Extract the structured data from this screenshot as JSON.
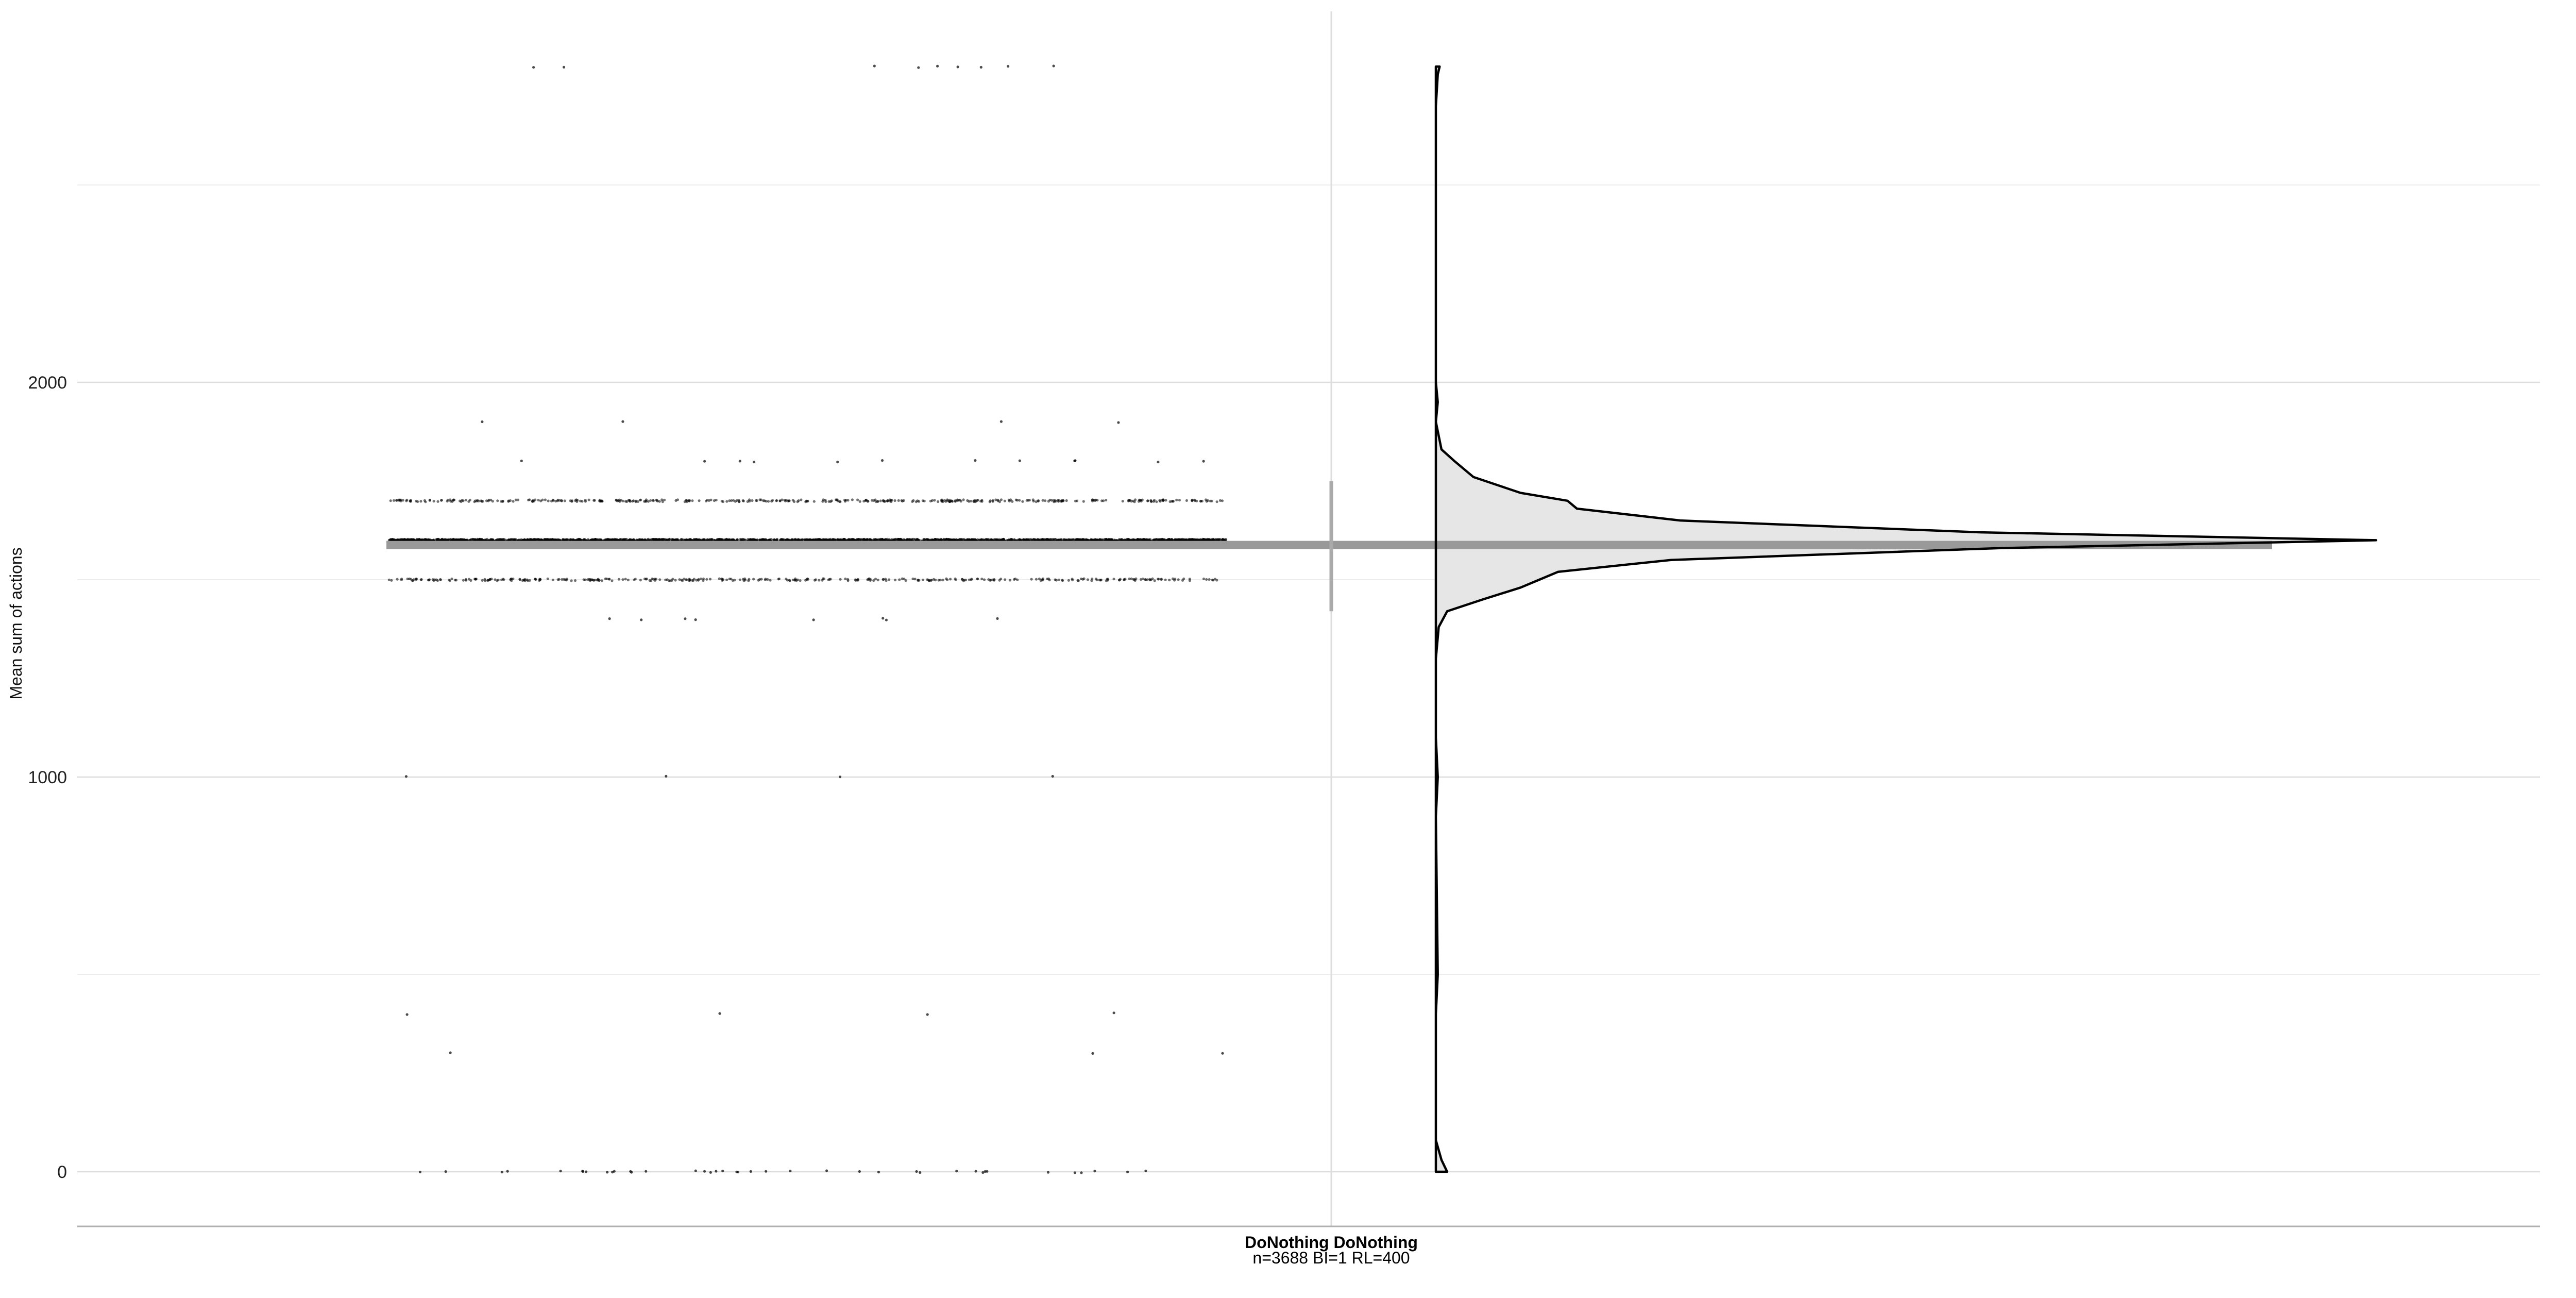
{
  "chart_data": {
    "type": "raincloud",
    "ylabel": "Mean sum of actions",
    "ylim": [
      -140,
      2950
    ],
    "yticks": [
      0,
      1000,
      2000
    ],
    "grid": true,
    "category": {
      "name": "DoNothing DoNothing",
      "subtitle": "n=3688 BI=1 RL=400"
    },
    "point_levels": [
      {
        "y": 2800,
        "count": 9
      },
      {
        "y": 1900,
        "count": 4
      },
      {
        "y": 1800,
        "count": 12
      },
      {
        "y": 1700,
        "count": 420
      },
      {
        "y": 1600,
        "count": 2600
      },
      {
        "y": 1500,
        "count": 360
      },
      {
        "y": 1400,
        "count": 8
      },
      {
        "y": 1000,
        "count": 4
      },
      {
        "y": 400,
        "count": 4
      },
      {
        "y": 300,
        "count": 3
      },
      {
        "y": 0,
        "count": 40
      }
    ],
    "summary": {
      "mean": 1588,
      "sd_low": 1420,
      "sd_high": 1750
    },
    "density": [
      [
        0,
        0.012
      ],
      [
        30,
        0.006
      ],
      [
        80,
        0.0
      ],
      [
        400,
        0.0
      ],
      [
        500,
        0.002
      ],
      [
        900,
        0.0
      ],
      [
        1000,
        0.002
      ],
      [
        1100,
        0.0
      ],
      [
        1300,
        0.0
      ],
      [
        1380,
        0.003
      ],
      [
        1420,
        0.012
      ],
      [
        1450,
        0.05
      ],
      [
        1480,
        0.09
      ],
      [
        1500,
        0.11
      ],
      [
        1520,
        0.13
      ],
      [
        1550,
        0.25
      ],
      [
        1580,
        0.6
      ],
      [
        1600,
        1.0
      ],
      [
        1620,
        0.58
      ],
      [
        1650,
        0.26
      ],
      [
        1680,
        0.15
      ],
      [
        1700,
        0.14
      ],
      [
        1720,
        0.09
      ],
      [
        1760,
        0.04
      ],
      [
        1800,
        0.02
      ],
      [
        1830,
        0.006
      ],
      [
        1900,
        0.0
      ],
      [
        1950,
        0.002
      ],
      [
        2000,
        0.0
      ],
      [
        2700,
        0.0
      ],
      [
        2780,
        0.002
      ],
      [
        2800,
        0.004
      ]
    ]
  }
}
